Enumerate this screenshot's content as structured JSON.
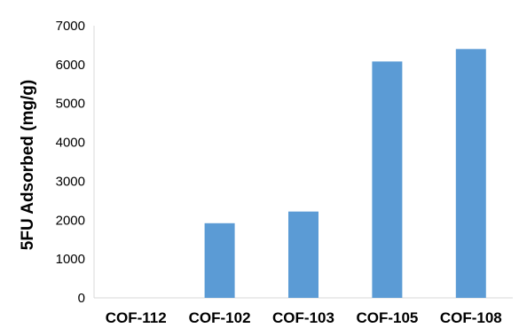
{
  "chart_data": {
    "type": "bar",
    "title": "",
    "xlabel": "",
    "ylabel": "5FU Adsorbed (mg/g)",
    "categories": [
      "COF-112",
      "COF-102",
      "COF-103",
      "COF-105",
      "COF-108"
    ],
    "values": [
      0,
      1920,
      2220,
      6080,
      6400
    ],
    "ylim": [
      0,
      7000
    ],
    "yticks": [
      0,
      1000,
      2000,
      3000,
      4000,
      5000,
      6000,
      7000
    ],
    "grid": false,
    "legend": "none",
    "bar_color": "#5b9bd5",
    "axis_color": "#d9d9d9"
  }
}
